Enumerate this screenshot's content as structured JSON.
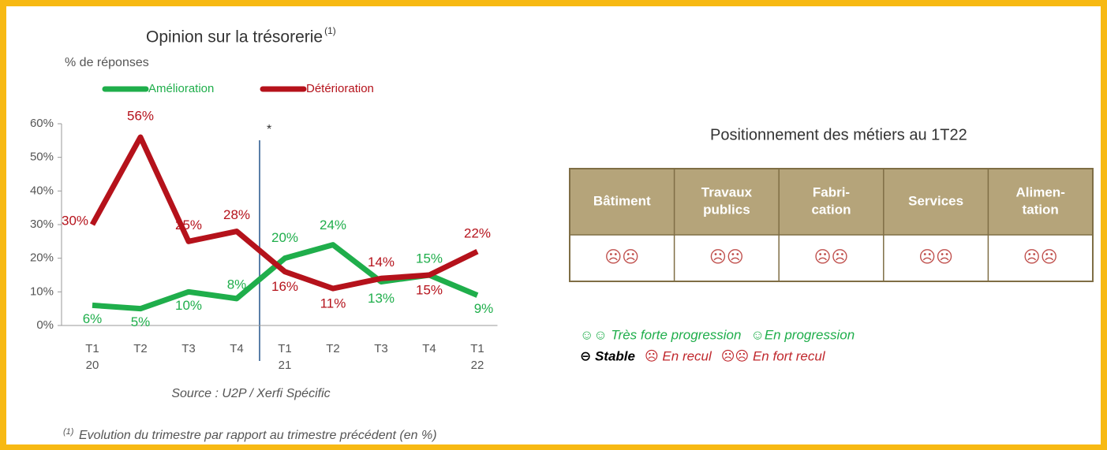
{
  "chart_data": {
    "type": "line",
    "title": "Opinion sur la trésorerie",
    "title_note": "(1)",
    "y_label": "% de réponses",
    "categories": [
      "T1 20",
      "T2",
      "T3",
      "T4",
      "T1 21",
      "T2",
      "T3",
      "T4",
      "T1 22"
    ],
    "series": [
      {
        "name": "Amélioration",
        "color": "#1fae4b",
        "values": [
          6,
          5,
          10,
          8,
          20,
          24,
          13,
          15,
          9
        ],
        "value_labels": [
          "6%",
          "5%",
          "10%",
          "8%",
          "20%",
          "24%",
          "13%",
          "15%",
          "9%"
        ]
      },
      {
        "name": "Détérioration",
        "color": "#b5121b",
        "values": [
          30,
          56,
          25,
          28,
          16,
          11,
          14,
          15,
          22
        ],
        "value_labels": [
          "30%",
          "56%",
          "25%",
          "28%",
          "16%",
          "11%",
          "14%",
          "15%",
          "22%"
        ]
      }
    ],
    "ylim": [
      0,
      60
    ],
    "yticks": [
      {
        "value": 0,
        "label": "0%"
      },
      {
        "value": 10,
        "label": "10%"
      },
      {
        "value": 20,
        "label": "20%"
      },
      {
        "value": 30,
        "label": "30%"
      },
      {
        "value": 40,
        "label": "40%"
      },
      {
        "value": 50,
        "label": "50%"
      },
      {
        "value": 60,
        "label": "60%"
      }
    ],
    "annotation": "*",
    "source": "Source : U2P / Xerfi Spécific"
  },
  "table": {
    "title": "Positionnement des métiers au 1T22",
    "headers": [
      [
        "Bâtiment"
      ],
      [
        "Travaux",
        "publics"
      ],
      [
        "Fabri-",
        "cation"
      ],
      [
        "Services"
      ],
      [
        "Alimen-",
        "tation"
      ]
    ],
    "rows": [
      [
        "☹☹",
        "☹☹",
        "☹☹",
        "☹☹",
        "☹☹"
      ]
    ]
  },
  "legend": [
    [
      {
        "text": "☺☺ Très forte progression",
        "color": "#1fae4b"
      },
      {
        "text": "☺En progression",
        "color": "#1fae4b"
      }
    ],
    [
      {
        "text": "⊖ Stable",
        "color": "#000000"
      },
      {
        "text": "☹ En recul",
        "color": "#c0282d"
      },
      {
        "text": "☹☹ En fort recul",
        "color": "#c0282d"
      }
    ]
  ],
  "footnote": {
    "mark": "(1)",
    "text": "Evolution du trimestre par rapport au trimestre précédent (en %)"
  }
}
